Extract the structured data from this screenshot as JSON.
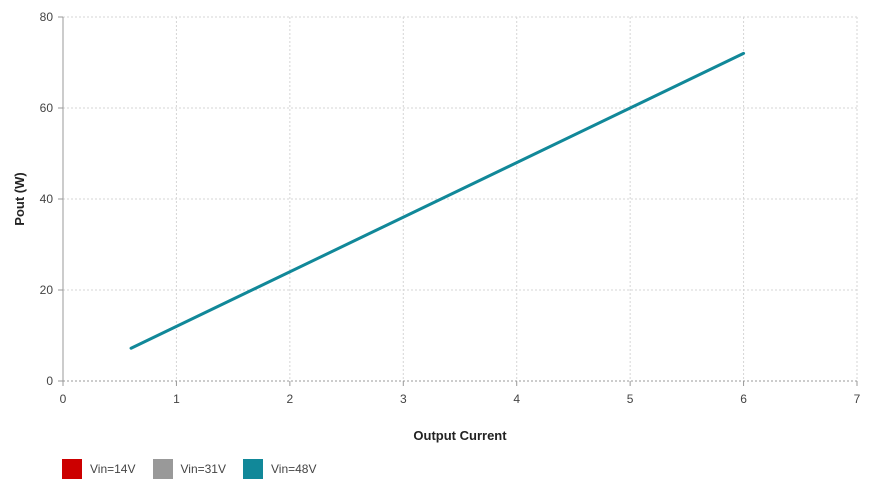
{
  "chart_data": {
    "type": "line",
    "xlabel": "Output Current",
    "ylabel": "Pout (W)",
    "xlim": [
      0,
      7
    ],
    "ylim": [
      0,
      80
    ],
    "x_ticks": [
      "0",
      "1",
      "2",
      "3",
      "4",
      "5",
      "6",
      "7"
    ],
    "y_ticks": [
      "0",
      "20",
      "40",
      "60",
      "80"
    ],
    "grid": true,
    "legend_position": "bottom-left",
    "series": [
      {
        "name": "Vin=14V",
        "color": "#cc0000",
        "x": [],
        "y": []
      },
      {
        "name": "Vin=31V",
        "color": "#999999",
        "x": [],
        "y": []
      },
      {
        "name": "Vin=48V",
        "color": "#118899",
        "x": [
          0.6,
          6.0
        ],
        "y": [
          7.2,
          72.0
        ]
      }
    ]
  }
}
